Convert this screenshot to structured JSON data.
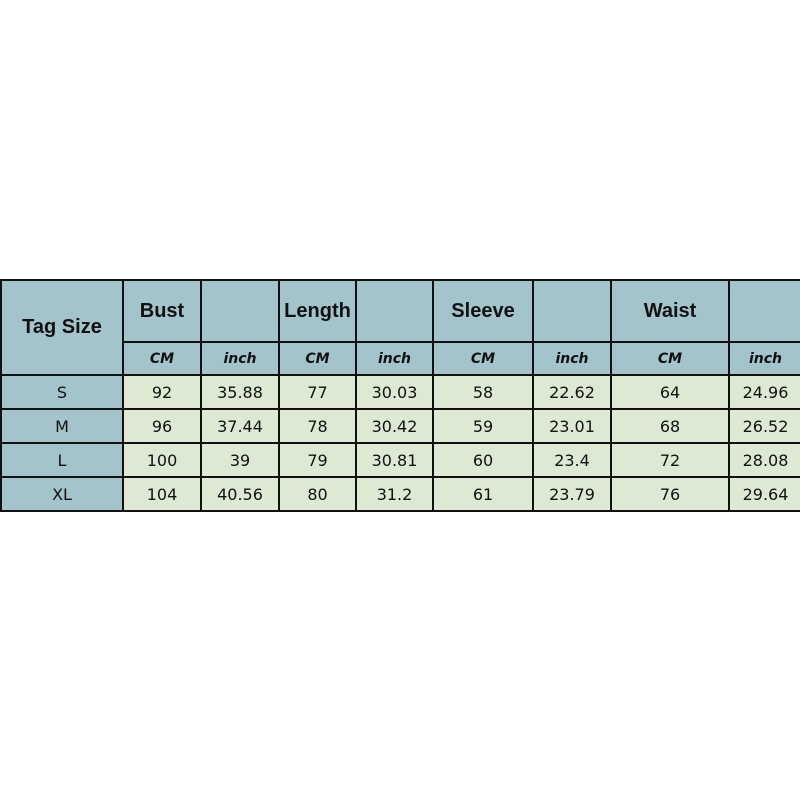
{
  "table": {
    "corner": "Tag Size",
    "groups": [
      "Bust",
      "Length",
      "Sleeve",
      "Waist"
    ],
    "units": [
      "CM",
      "inch",
      "CM",
      "inch",
      "CM",
      "inch",
      "CM",
      "inch"
    ],
    "rows": [
      {
        "size": "S",
        "values": [
          "92",
          "35.88",
          "77",
          "30.03",
          "58",
          "22.62",
          "64",
          "24.96"
        ]
      },
      {
        "size": "M",
        "values": [
          "96",
          "37.44",
          "78",
          "30.42",
          "59",
          "23.01",
          "68",
          "26.52"
        ]
      },
      {
        "size": "L",
        "values": [
          "100",
          "39",
          "79",
          "30.81",
          "60",
          "23.4",
          "72",
          "28.08"
        ]
      },
      {
        "size": "XL",
        "values": [
          "104",
          "40.56",
          "80",
          "31.2",
          "61",
          "23.79",
          "76",
          "29.64"
        ]
      }
    ],
    "colors": {
      "header": "#a3c4cb",
      "cell": "#dde9d3",
      "border": "#111111"
    }
  }
}
